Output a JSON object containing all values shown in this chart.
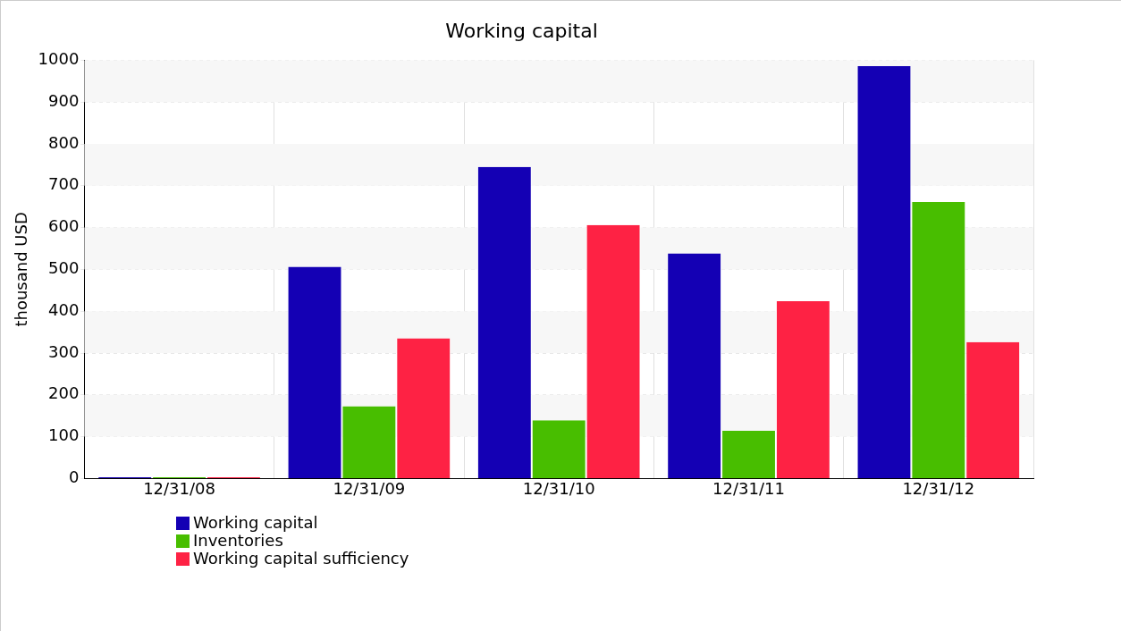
{
  "chart_data": {
    "type": "bar",
    "title": "Working capital",
    "ylabel": "thousand USD",
    "categories": [
      "12/31/08",
      "12/31/09",
      "12/31/10",
      "12/31/11",
      "12/31/12"
    ],
    "series": [
      {
        "name": "Working capital",
        "color": "#1400b4",
        "values": [
          3,
          506,
          745,
          538,
          986
        ]
      },
      {
        "name": "Inventories",
        "color": "#48be00",
        "values": [
          3,
          173,
          139,
          114,
          661
        ]
      },
      {
        "name": "Working capital sufficiency",
        "color": "#fe2244",
        "values": [
          3,
          335,
          606,
          424,
          326
        ]
      }
    ],
    "ylim": [
      0,
      1000
    ],
    "yticks": [
      0,
      100,
      200,
      300,
      400,
      500,
      600,
      700,
      800,
      900,
      1000
    ],
    "grid": true,
    "legend": "bottom left"
  }
}
